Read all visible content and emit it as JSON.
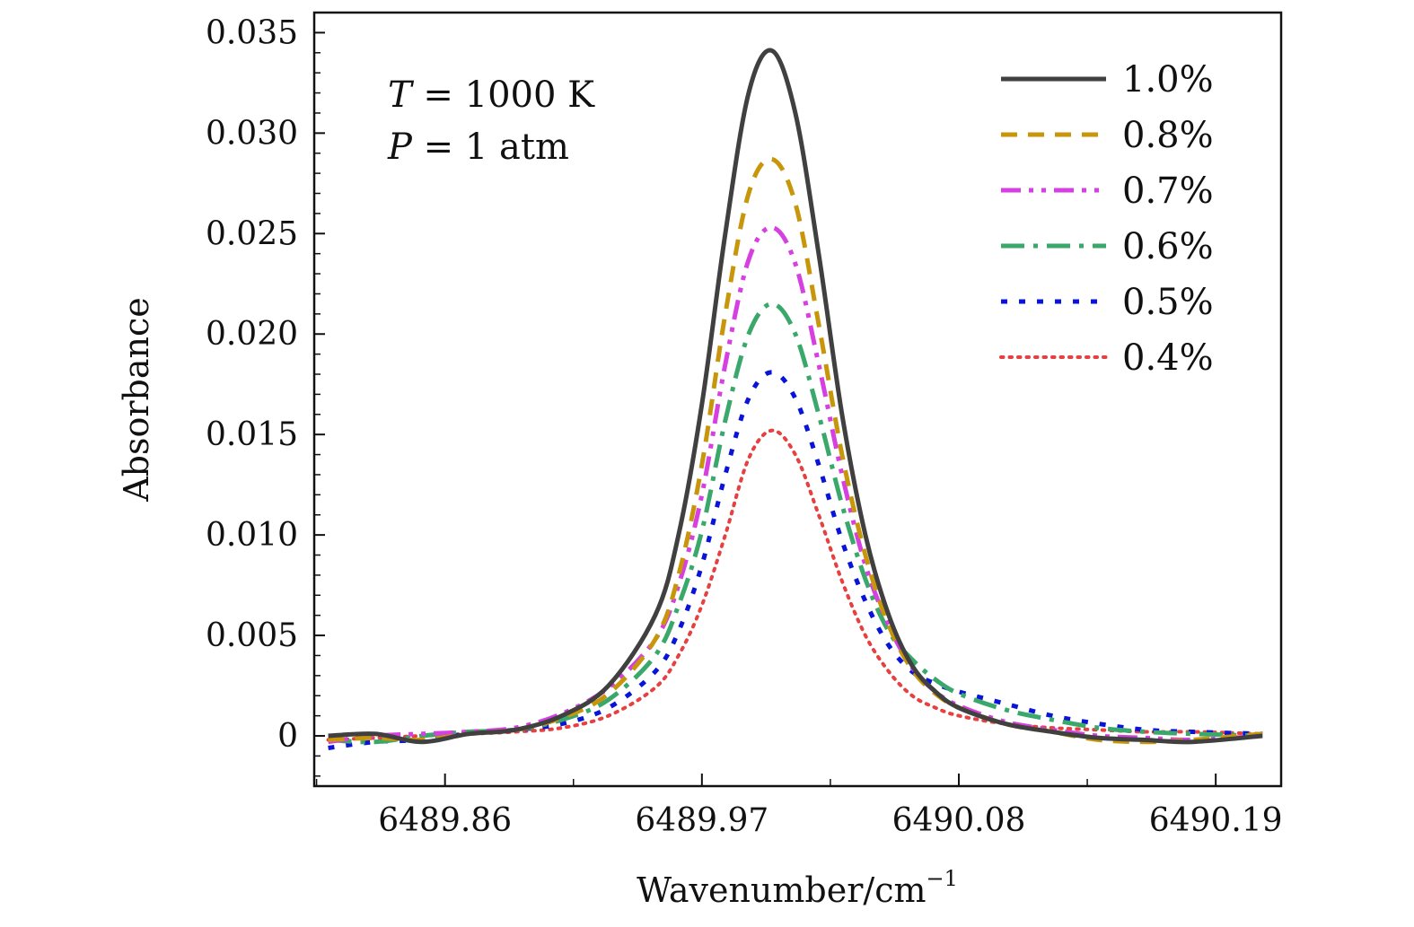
{
  "chart_data": {
    "type": "line",
    "title": "",
    "xlabel": "Wavenumber/cm",
    "xlabel_sup": "−1",
    "ylabel": "Absorbance",
    "xlim": [
      6489.804,
      6490.218
    ],
    "ylim": [
      -0.0025,
      0.036
    ],
    "xticks": [
      6489.86,
      6489.97,
      6490.08,
      6490.19
    ],
    "xtick_labels": [
      "6489.86",
      "6489.97",
      "6490.08",
      "6490.19"
    ],
    "yticks": [
      0,
      0.005,
      0.01,
      0.015,
      0.02,
      0.025,
      0.03,
      0.035
    ],
    "ytick_labels": [
      "0",
      "0.005",
      "0.010",
      "0.015",
      "0.020",
      "0.025",
      "0.030",
      "0.035"
    ],
    "grid": false,
    "legend_position": "top-right",
    "annotations": {
      "temperature": {
        "symbol": "T",
        "text": " = 1000 K"
      },
      "pressure": {
        "symbol": "P",
        "text": " = 1 atm"
      }
    },
    "x": [
      6489.81,
      6489.83,
      6489.85,
      6489.87,
      6489.89,
      6489.91,
      6489.93,
      6489.95,
      6489.96,
      6489.97,
      6489.98,
      6489.99,
      6490.0,
      6490.01,
      6490.02,
      6490.03,
      6490.04,
      6490.05,
      6490.06,
      6490.07,
      6490.08,
      6490.1,
      6490.12,
      6490.14,
      6490.16,
      6490.18,
      6490.21
    ],
    "series": [
      {
        "name": "1.0%",
        "color": "#404040",
        "style": "solid",
        "values": [
          0.0,
          0.0001,
          -0.0003,
          0.0001,
          0.0003,
          0.001,
          0.0025,
          0.006,
          0.01,
          0.0165,
          0.025,
          0.032,
          0.0341,
          0.031,
          0.024,
          0.016,
          0.01,
          0.006,
          0.0035,
          0.0022,
          0.0014,
          0.0006,
          0.0002,
          -0.0001,
          -0.0002,
          -0.0003,
          0.0
        ]
      },
      {
        "name": "0.8%",
        "color": "#C8960A",
        "style": "dashed",
        "values": [
          -0.0002,
          -0.0001,
          -0.0002,
          0.0001,
          0.0003,
          0.0009,
          0.0021,
          0.0048,
          0.008,
          0.0135,
          0.021,
          0.027,
          0.0287,
          0.0265,
          0.0205,
          0.014,
          0.009,
          0.0055,
          0.0033,
          0.0021,
          0.0014,
          0.0006,
          0.0002,
          -0.0002,
          -0.0003,
          -0.0002,
          0.0001
        ]
      },
      {
        "name": "0.7%",
        "color": "#D63FE0",
        "style": "dash-dot-dot",
        "values": [
          -0.0003,
          0.0,
          0.0001,
          0.0002,
          0.0004,
          0.0011,
          0.0024,
          0.0048,
          0.0075,
          0.012,
          0.0185,
          0.0237,
          0.0253,
          0.0235,
          0.0185,
          0.013,
          0.0085,
          0.0055,
          0.0034,
          0.0022,
          0.0015,
          0.0007,
          0.0003,
          0.0,
          -0.0001,
          -0.0002,
          0.0
        ]
      },
      {
        "name": "0.6%",
        "color": "#3AA86B",
        "style": "long-dash-dot",
        "values": [
          -0.0002,
          -0.0003,
          0.0,
          0.0002,
          0.0003,
          0.0008,
          0.0018,
          0.004,
          0.0065,
          0.0102,
          0.0157,
          0.02,
          0.0215,
          0.02,
          0.016,
          0.0115,
          0.0078,
          0.0052,
          0.0038,
          0.0028,
          0.0021,
          0.0013,
          0.0008,
          0.0004,
          0.0002,
          0.0001,
          0.0
        ]
      },
      {
        "name": "0.5%",
        "color": "#0A14D8",
        "style": "short-dash",
        "values": [
          -0.0006,
          -0.0003,
          -0.0002,
          0.0001,
          0.0003,
          0.0006,
          0.0014,
          0.0032,
          0.0052,
          0.0085,
          0.013,
          0.0168,
          0.0181,
          0.0168,
          0.0135,
          0.0097,
          0.0067,
          0.0045,
          0.0032,
          0.0026,
          0.0022,
          0.0016,
          0.001,
          0.0006,
          0.0003,
          0.0002,
          0.0001
        ]
      },
      {
        "name": "0.4%",
        "color": "#E64040",
        "style": "dotted",
        "values": [
          -0.0002,
          -0.0001,
          0.0,
          0.0001,
          0.0002,
          0.0004,
          0.001,
          0.0024,
          0.004,
          0.0065,
          0.01,
          0.0138,
          0.0152,
          0.014,
          0.011,
          0.0077,
          0.005,
          0.0032,
          0.002,
          0.0014,
          0.001,
          0.0006,
          0.0004,
          0.0003,
          0.0002,
          0.0002,
          0.0001
        ]
      }
    ]
  }
}
